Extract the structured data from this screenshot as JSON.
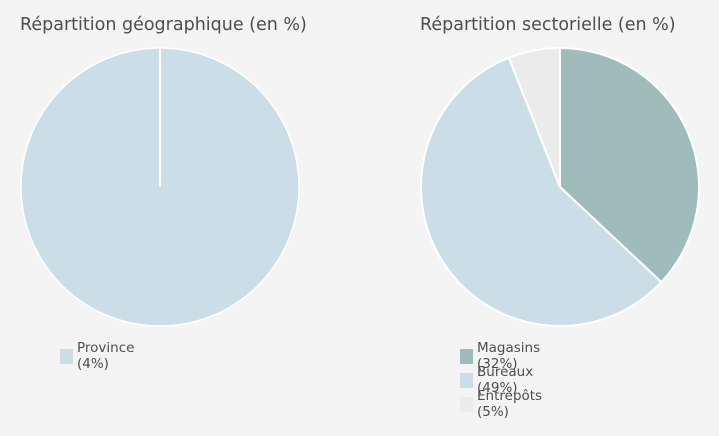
{
  "chart_data": [
    {
      "type": "pie",
      "title": "Répartition géographique (en %)",
      "slices": [
        {
          "label": "Province (4%)",
          "value": 100,
          "color": "#cbdde7"
        }
      ]
    },
    {
      "type": "pie",
      "title": "Répartition sectorielle (en %)",
      "slices": [
        {
          "label": "Magasins (32%)",
          "value": 37,
          "color": "#9fbbbb"
        },
        {
          "label": "Bureaux (49%)",
          "value": 57,
          "color": "#cbdde7"
        },
        {
          "label": "Entrepôts (5%)",
          "value": 6,
          "color": "#ebebeb"
        }
      ]
    }
  ]
}
